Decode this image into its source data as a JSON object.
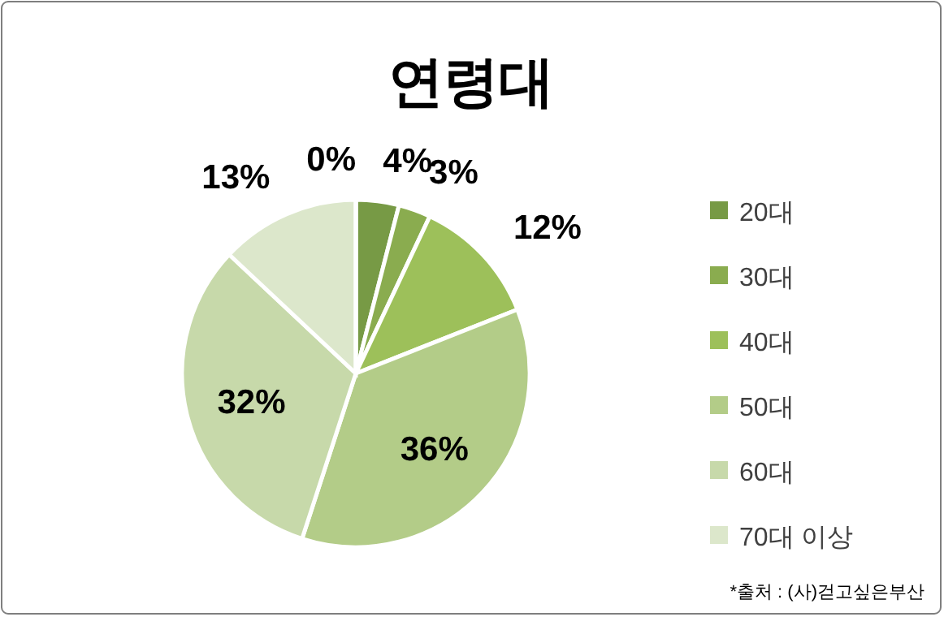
{
  "chart_data": {
    "type": "pie",
    "title": "연령대",
    "categories": [
      "20대",
      "30대",
      "40대",
      "50대",
      "60대",
      "70대 이상",
      null
    ],
    "values": [
      4,
      3,
      12,
      36,
      32,
      13,
      0
    ],
    "value_labels": [
      "4%",
      "3%",
      "12%",
      "36%",
      "32%",
      "13%",
      "0%"
    ],
    "colors": [
      "#779a45",
      "#8aac4f",
      "#9dc05a",
      "#b3cc88",
      "#c7d9aa",
      "#dce7cb",
      "#e6eed9"
    ],
    "legend": "right",
    "annotations": [
      "*출처 : (사)걷고싶은부산"
    ]
  }
}
